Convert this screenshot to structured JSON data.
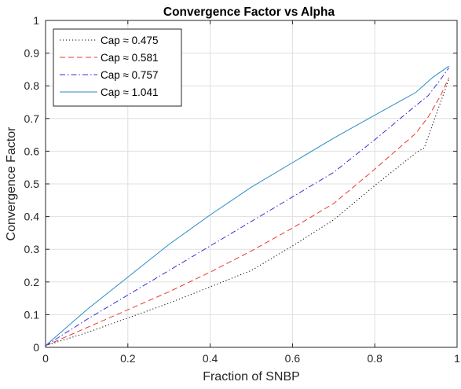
{
  "chart_data": {
    "type": "line",
    "title": "Convergence Factor vs Alpha",
    "xlabel": "Fraction of SNBP",
    "ylabel": "Convergence Factor",
    "xlim": [
      0,
      1
    ],
    "ylim": [
      0,
      1
    ],
    "xticks": [
      0,
      0.2,
      0.4,
      0.6,
      0.8,
      1
    ],
    "xtick_labels": [
      "0",
      "0.2",
      "0.4",
      "0.6",
      "0.8",
      "1"
    ],
    "yticks": [
      0,
      0.1,
      0.2,
      0.3,
      0.4,
      0.5,
      0.6,
      0.7,
      0.8,
      0.9,
      1
    ],
    "ytick_labels": [
      "0",
      "0.1",
      "0.2",
      "0.3",
      "0.4",
      "0.5",
      "0.6",
      "0.7",
      "0.8",
      "0.9",
      "1"
    ],
    "grid": true,
    "legend_position": "top-left",
    "series": [
      {
        "name": "Cap ≈ 0.475",
        "color": "#000000",
        "style": "dotted",
        "x": [
          0,
          0.1,
          0.2,
          0.3,
          0.4,
          0.5,
          0.6,
          0.7,
          0.8,
          0.9,
          0.92,
          0.95,
          0.98
        ],
        "y": [
          0.005,
          0.045,
          0.09,
          0.135,
          0.185,
          0.235,
          0.31,
          0.39,
          0.495,
          0.595,
          0.61,
          0.715,
          0.82
        ]
      },
      {
        "name": "Cap ≈ 0.581",
        "color": "#e8392b",
        "style": "dashed",
        "x": [
          0,
          0.1,
          0.2,
          0.3,
          0.4,
          0.5,
          0.6,
          0.7,
          0.8,
          0.9,
          0.93,
          0.96,
          0.98
        ],
        "y": [
          0.005,
          0.06,
          0.115,
          0.17,
          0.23,
          0.295,
          0.365,
          0.44,
          0.545,
          0.655,
          0.705,
          0.77,
          0.825
        ]
      },
      {
        "name": "Cap ≈ 0.757",
        "color": "#3a30d4",
        "style": "dashdot",
        "x": [
          0,
          0.1,
          0.2,
          0.3,
          0.4,
          0.5,
          0.6,
          0.7,
          0.8,
          0.9,
          0.93,
          0.96,
          0.98
        ],
        "y": [
          0.005,
          0.085,
          0.16,
          0.235,
          0.31,
          0.385,
          0.46,
          0.535,
          0.635,
          0.74,
          0.77,
          0.82,
          0.855
        ]
      },
      {
        "name": "Cap ≈ 1.041",
        "color": "#2b8cc4",
        "style": "solid",
        "x": [
          0,
          0.05,
          0.1,
          0.2,
          0.3,
          0.4,
          0.5,
          0.6,
          0.7,
          0.8,
          0.9,
          0.94,
          0.98
        ],
        "y": [
          0.005,
          0.06,
          0.115,
          0.215,
          0.315,
          0.405,
          0.49,
          0.565,
          0.64,
          0.71,
          0.78,
          0.825,
          0.86
        ]
      }
    ]
  }
}
